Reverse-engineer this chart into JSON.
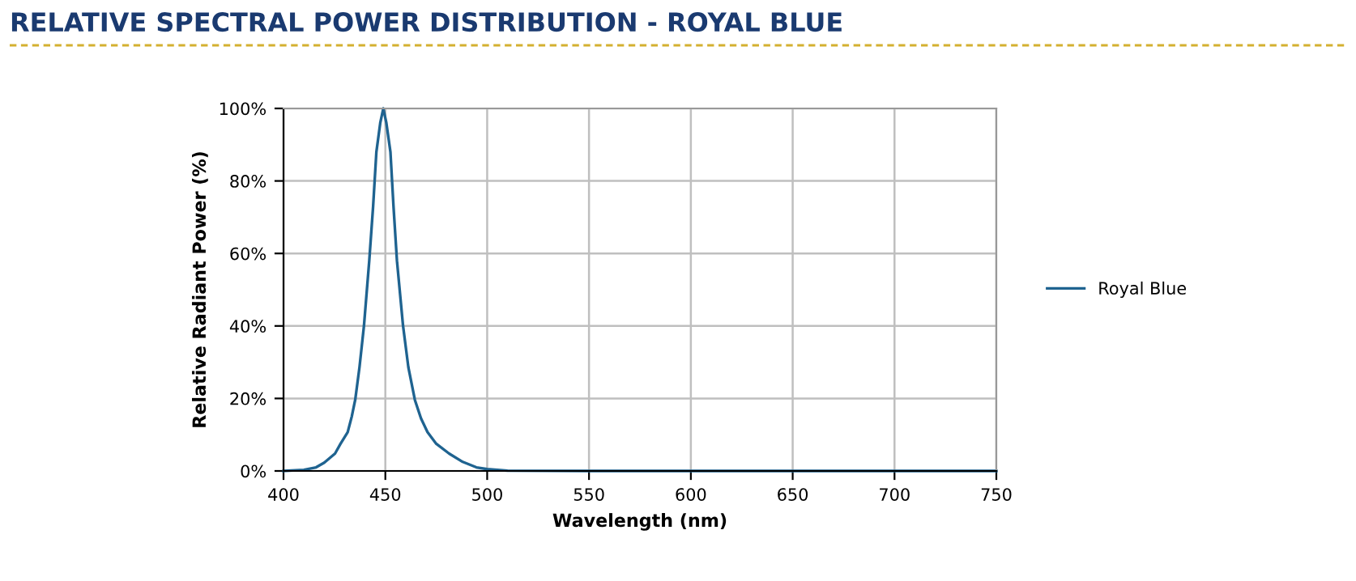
{
  "chart_data": {
    "type": "line",
    "title": "RELATIVE SPECTRAL POWER DISTRIBUTION - ROYAL BLUE",
    "xlabel": "Wavelength (nm)",
    "ylabel": "Relative Radiant Power (%)",
    "series": [
      {
        "name": "Royal Blue",
        "color": "#1f6390",
        "x": [
          400,
          410,
          416,
          420,
          425.3,
          428,
          431.5,
          433.5,
          435.2,
          437.3,
          439.5,
          442.1,
          444,
          445.6,
          447.5,
          449,
          450.5,
          452.5,
          454,
          455.7,
          458.7,
          461.3,
          464.5,
          467.5,
          470.7,
          475,
          481.3,
          488,
          494.7,
          500,
          510,
          550,
          600,
          650,
          700,
          750
        ],
        "values": [
          0,
          0.3,
          1,
          2.3,
          4.8,
          7.5,
          10.7,
          15,
          19.6,
          28.6,
          40,
          58,
          73,
          88,
          96,
          100,
          96,
          88,
          73,
          58,
          40,
          28.6,
          19.6,
          14.5,
          10.7,
          7.5,
          4.8,
          2.5,
          1,
          0.5,
          0.1,
          0,
          0,
          0,
          0,
          0
        ]
      }
    ],
    "xlim": [
      400,
      750
    ],
    "xticks": [
      400,
      450,
      500,
      550,
      600,
      650,
      700,
      750
    ],
    "ylim": [
      0,
      100
    ],
    "yticks": [
      {
        "value": 0,
        "label": "0%"
      },
      {
        "value": 20,
        "label": "20%"
      },
      {
        "value": 40,
        "label": "40%"
      },
      {
        "value": 60,
        "label": "60%"
      },
      {
        "value": 80,
        "label": "80%"
      },
      {
        "value": 100,
        "label": "100%"
      }
    ],
    "grid": true,
    "legend": "right",
    "marker": "none",
    "line_style": "solid"
  }
}
